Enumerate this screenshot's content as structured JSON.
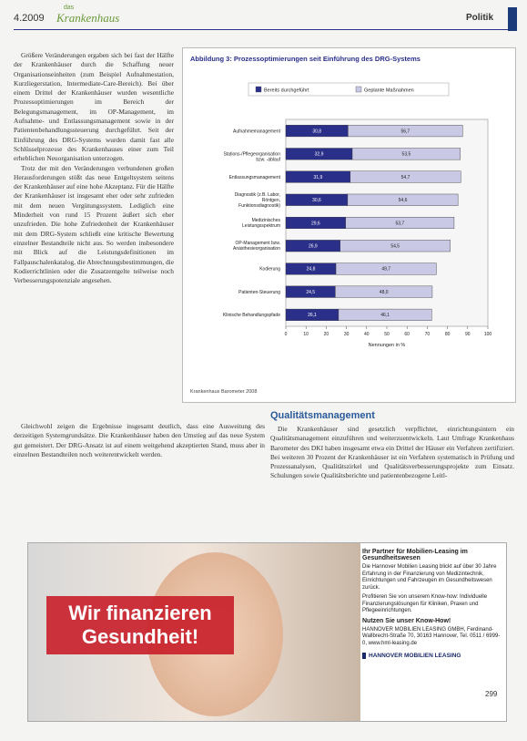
{
  "header": {
    "issue": "4.2009",
    "logo_small": "das",
    "logo": "Krankenhaus",
    "section": "Politik"
  },
  "article": {
    "left_top": "Größere Veränderungen ergaben sich bei fast der Hälfte der Krankenhäuser durch die Schaffung neuer Organisationseinheiten (zum Beispiel Aufnahmestation, Kurzliegerstation, Intermediate-Care-Bereich). Bei über einem Drittel der Krankenhäuser wurden wesentliche Prozessoptimierungen im Bereich der Belegungsmanagement, im OP-Management, im Aufnahme- und Entlassungsmanagement sowie in der Patientenbehandlungssteuerung durchgeführt. Seit der Einführung des DRG-Systems wurden damit fast alle Schlüsselprozesse des Krankenhauses einer zum Teil erheblichen Neuorganisation unterzogen.",
    "left_top2": "Trotz der mit den Veränderungen verbundenen großen Herausforderungen stößt das neue Entgeltsystem seitens der Krankenhäuser auf eine hohe Akzeptanz. Für die Hälfte der Krankenhäuser ist insgesamt eher oder sehr zufrieden mit dem neuen Vergütungssystem. Lediglich eine Minderheit von rund 15 Prozent äußert sich eher unzufrieden. Die hohe Zufriedenheit der Krankenhäuser mit dem DRG-System schließt eine kritische Bewertung einzelner Bestandteile nicht aus. So werden insbesondere mit Blick auf die Leistungsdefinitionen im Fallpauschalenkatalog, die Abrechnungsbestimmungen, die Kodierrichtlinien oder die Zusatzentgelte teilweise noch Verbesserungspotenziale angesehen.",
    "left_bottom": "Gleichwohl zeigen die Ergebnisse insgesamt deutlich, dass eine Ausweitung des derzeitigen Systemgrundsätze. Die Krankenhäuser haben den Umstieg auf das neue System gut gemeistert. Der DRG-Ansatz ist auf einem weitgehend akzeptierten Stand, muss aber in einzelnen Bestandteilen noch weiterentwickelt werden.",
    "heading": "Qualitätsmanagement",
    "right_bottom": "Die Krankenhäuser sind gesetzlich verpflichtet, einrichtungsintern ein Qualitätsmanagement einzuführen und weiterzuentwickeln. Laut Umfrage Krankenhaus Barometer des DKI haben insgesamt etwa ein Drittel der Häuser ein Verfahren zertifiziert. Bei weiteren 30 Prozent der Krankenhäuser ist ein Verfahren systematisch in Prüfung und Prozessanalysen, Qualitätszirkel und Qualitätsverbesserungsprojekte zum Einsatz. Schulungen sowie Qualitätsberichte und patientenbezogene Leitl-"
  },
  "chart_data": {
    "type": "bar",
    "orientation": "horizontal",
    "stacked": true,
    "title": "Abbildung 3: Prozessoptimierungen seit Einführung des DRG-Systems",
    "categories": [
      "Aufnahmemanagement",
      "Stations-/Pflegeorganisation bzw. -ablauf",
      "Entlassungsmanagement",
      "Diagnostik (z.B. Labor, Röntgen, Funktionsdiagnostik)",
      "Medizinisches Leistungsspektrum",
      "OP-Management bzw. Anästhesieorganisation",
      "Kodierung",
      "Patienten-Steuerung",
      "Klinische Behandlungspfade"
    ],
    "series": [
      {
        "name": "Bereits durchgeführt",
        "color": "#2a2f8a",
        "values": [
          30.8,
          32.9,
          31.9,
          30.6,
          29.6,
          26.9,
          24.8,
          24.5,
          26.1
        ],
        "value_labels": [
          "30,8",
          "32,9",
          "31,9",
          "30,6",
          "29,6",
          "26,9",
          "24,8",
          "24,5",
          "26,1"
        ]
      },
      {
        "name": "Geplante Maßnahmen",
        "color": "#c9c9e6",
        "values": [
          56.7,
          53.5,
          54.7,
          54.6,
          53.7,
          54.5,
          49.7,
          48.0,
          46.1
        ],
        "value_labels": [
          "56,7",
          "53,5",
          "54,7",
          "54,6",
          "53,7",
          "54,5",
          "49,7",
          "48,0",
          "46,1"
        ]
      }
    ],
    "xlim": [
      0,
      100
    ],
    "xticks": [
      0,
      10,
      20,
      30,
      40,
      50,
      60,
      70,
      80,
      90,
      100
    ],
    "xlabel": "Nennungen in %",
    "source": "Krankenhaus Barometer 2008"
  },
  "ad": {
    "headline1": "Wir finanzieren",
    "headline2": "Gesundheit!",
    "partner": "Ihr Partner für Mobilien-Leasing im Gesundheitswesen",
    "text1": "Die Hannover Mobilien Leasing blickt auf über 30 Jahre Erfahrung in der Finanzierung von Medizintechnik, Einrichtungen und Fahrzeugen im Gesundheitswesen zurück.",
    "text2": "Profitieren Sie von unserem Know-how: Individuelle Finanzierungslösungen für Kliniken, Praxen und Pflegeeinrichtungen.",
    "knowhow": "Nutzen Sie unser Know-How!",
    "contact": "HANNOVER MOBILIEN LEASING GMBH, Ferdinand-Wallbrecht-Straße 70, 30163 Hannover, Tel. 0511 / 6999-0, www.hml-leasing.de",
    "brand": "HANNOVER MOBILIEN LEASING"
  },
  "footer": {
    "page": "299"
  }
}
